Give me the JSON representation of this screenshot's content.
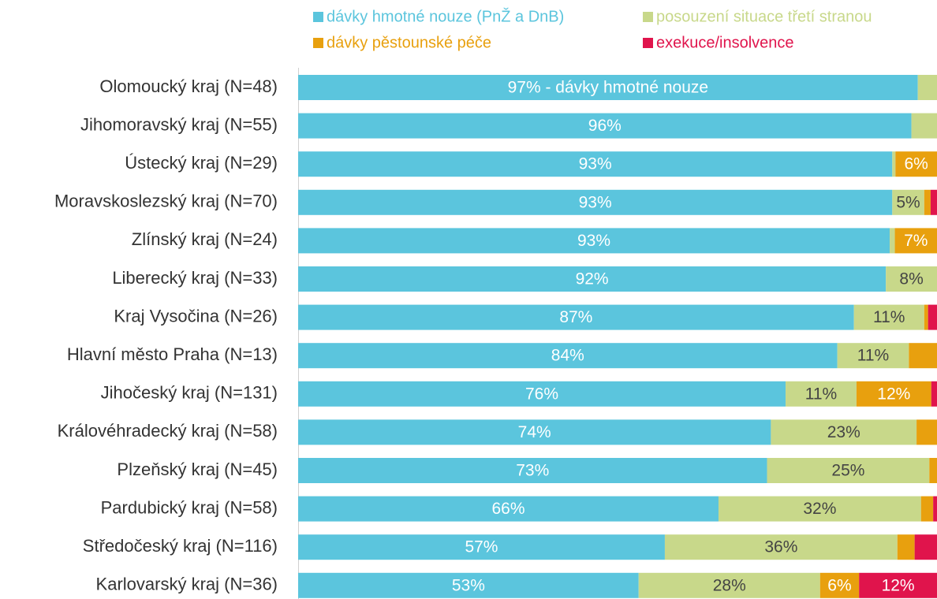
{
  "chart_data": {
    "type": "bar",
    "orientation": "horizontal",
    "stacked": true,
    "legend": "top",
    "xlim": [
      0,
      100
    ],
    "categories": [
      "Olomoucký kraj (N=48)",
      "Jihomoravský kraj (N=55)",
      "Ústecký kraj (N=29)",
      "Moravskoslezský kraj (N=70)",
      "Zlínský kraj (N=24)",
      "Liberecký kraj (N=33)",
      "Kraj Vysočina (N=26)",
      "Hlavní město Praha (N=13)",
      "Jihočeský kraj (N=131)",
      "Královéhradecký kraj (N=58)",
      "Plzeňský kraj (N=45)",
      "Pardubický kraj (N=58)",
      "Středočeský kraj (N=116)",
      "Karlovarský kraj (N=36)"
    ],
    "series": [
      {
        "name": "dávky hmotné nouze (PnŽ a DnB)",
        "color": "#5bc5dd",
        "values": [
          97,
          96,
          93,
          93,
          92.6,
          92,
          87,
          84.4,
          76.3,
          74,
          73.4,
          65.8,
          57.4,
          53.3
        ],
        "value_labels": [
          "97% - dávky hmotné nouze",
          "96%",
          "93%",
          "93%",
          "93%",
          "92%",
          "87%",
          "84%",
          "76%",
          "74%",
          "73%",
          "66%",
          "57%",
          "53%"
        ]
      },
      {
        "name": "posouzení situace třetí stranou",
        "color": "#c8d88a",
        "values": [
          3,
          4,
          0.5,
          5,
          0.8,
          8,
          11,
          11.2,
          11.1,
          22.8,
          25.4,
          31.7,
          36.4,
          28.4
        ],
        "value_labels": [
          null,
          null,
          null,
          "5%",
          null,
          "8%",
          "11%",
          "11%",
          "11%",
          "23%",
          "25%",
          "32%",
          "36%",
          "28%"
        ]
      },
      {
        "name": "dávky pěstounské péče",
        "color": "#e8a00e",
        "values": [
          0,
          0,
          6.5,
          1,
          6.6,
          0,
          0.6,
          4.4,
          11.7,
          3.2,
          1.2,
          1.9,
          2.7,
          6.1
        ],
        "value_labels": [
          null,
          null,
          "6%",
          null,
          "7%",
          null,
          null,
          null,
          "12%",
          null,
          null,
          null,
          null,
          "6%"
        ]
      },
      {
        "name": "exekuce/insolvence",
        "color": "#e0144c",
        "values": [
          0,
          0,
          0,
          1,
          0,
          0,
          1.4,
          0,
          0.9,
          0,
          0,
          0.6,
          3.5,
          12.2
        ],
        "value_labels": [
          null,
          null,
          null,
          null,
          null,
          null,
          null,
          null,
          null,
          null,
          null,
          null,
          null,
          "12%"
        ]
      }
    ]
  }
}
